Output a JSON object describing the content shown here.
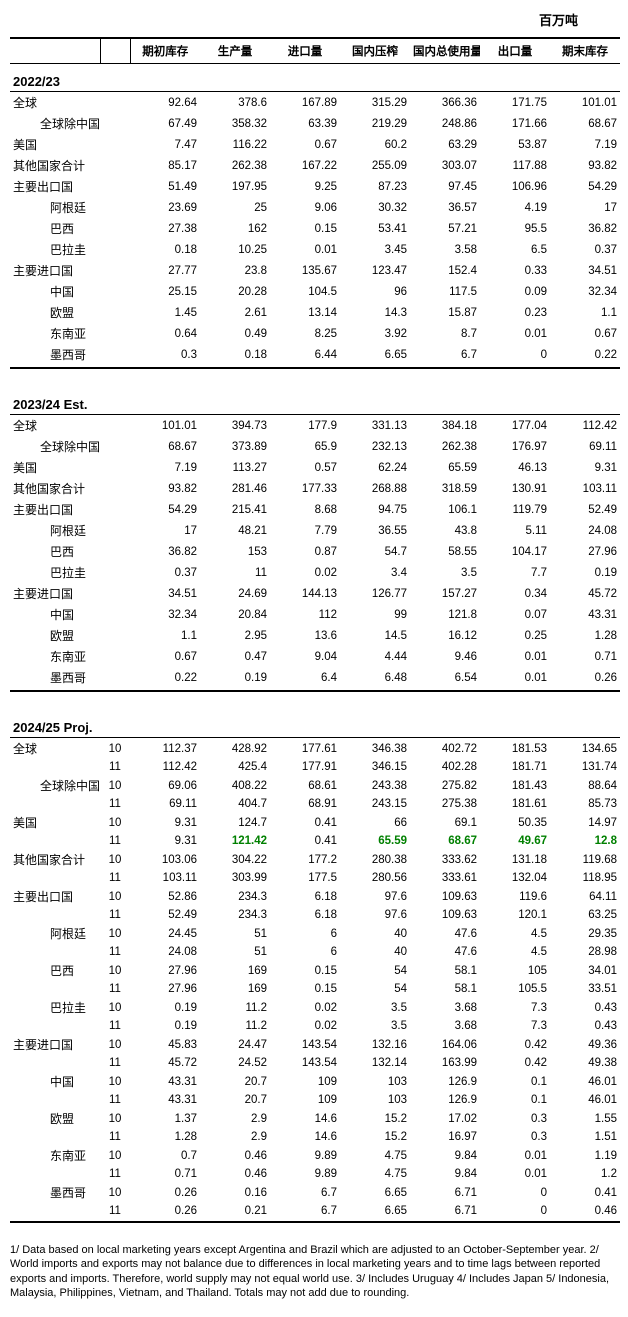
{
  "unit_label": "百万吨",
  "columns": [
    "期初库存",
    "生产量",
    "进口量",
    "国内压榨",
    "国内总使用量",
    "出口量",
    "期末库存"
  ],
  "section_titles": [
    "2022/23",
    "2023/24 Est.",
    "2024/25 Proj."
  ],
  "row_labels": {
    "world": "全球",
    "world_ex_china": "全球除中国外",
    "usa": "美国",
    "other_total": "其他国家合计",
    "major_exporters": "主要出口国",
    "argentina": "阿根廷",
    "brazil": "巴西",
    "paraguay": "巴拉圭",
    "major_importers": "主要进口国",
    "china": "中国",
    "eu": "欧盟",
    "seasia": "东南亚",
    "mexico": "墨西哥"
  },
  "s2022": [
    {
      "k": "world",
      "indent": 0,
      "v": [
        "92.64",
        "378.6",
        "167.89",
        "315.29",
        "366.36",
        "171.75",
        "101.01"
      ]
    },
    {
      "k": "world_ex_china",
      "indent": 1,
      "v": [
        "67.49",
        "358.32",
        "63.39",
        "219.29",
        "248.86",
        "171.66",
        "68.67"
      ]
    },
    {
      "k": "usa",
      "indent": 0,
      "v": [
        "7.47",
        "116.22",
        "0.67",
        "60.2",
        "63.29",
        "53.87",
        "7.19"
      ]
    },
    {
      "k": "other_total",
      "indent": 0,
      "v": [
        "85.17",
        "262.38",
        "167.22",
        "255.09",
        "303.07",
        "117.88",
        "93.82"
      ]
    },
    {
      "k": "major_exporters",
      "indent": 0,
      "v": [
        "51.49",
        "197.95",
        "9.25",
        "87.23",
        "97.45",
        "106.96",
        "54.29"
      ]
    },
    {
      "k": "argentina",
      "indent": 2,
      "v": [
        "23.69",
        "25",
        "9.06",
        "30.32",
        "36.57",
        "4.19",
        "17"
      ]
    },
    {
      "k": "brazil",
      "indent": 2,
      "v": [
        "27.38",
        "162",
        "0.15",
        "53.41",
        "57.21",
        "95.5",
        "36.82"
      ]
    },
    {
      "k": "paraguay",
      "indent": 2,
      "v": [
        "0.18",
        "10.25",
        "0.01",
        "3.45",
        "3.58",
        "6.5",
        "0.37"
      ]
    },
    {
      "k": "major_importers",
      "indent": 0,
      "v": [
        "27.77",
        "23.8",
        "135.67",
        "123.47",
        "152.4",
        "0.33",
        "34.51"
      ]
    },
    {
      "k": "china",
      "indent": 2,
      "v": [
        "25.15",
        "20.28",
        "104.5",
        "96",
        "117.5",
        "0.09",
        "32.34"
      ]
    },
    {
      "k": "eu",
      "indent": 2,
      "v": [
        "1.45",
        "2.61",
        "13.14",
        "14.3",
        "15.87",
        "0.23",
        "1.1"
      ]
    },
    {
      "k": "seasia",
      "indent": 2,
      "v": [
        "0.64",
        "0.49",
        "8.25",
        "3.92",
        "8.7",
        "0.01",
        "0.67"
      ]
    },
    {
      "k": "mexico",
      "indent": 2,
      "v": [
        "0.3",
        "0.18",
        "6.44",
        "6.65",
        "6.7",
        "0",
        "0.22"
      ]
    }
  ],
  "s2023": [
    {
      "k": "world",
      "indent": 0,
      "v": [
        "101.01",
        "394.73",
        "177.9",
        "331.13",
        "384.18",
        "177.04",
        "112.42"
      ]
    },
    {
      "k": "world_ex_china",
      "indent": 1,
      "v": [
        "68.67",
        "373.89",
        "65.9",
        "232.13",
        "262.38",
        "176.97",
        "69.11"
      ]
    },
    {
      "k": "usa",
      "indent": 0,
      "v": [
        "7.19",
        "113.27",
        "0.57",
        "62.24",
        "65.59",
        "46.13",
        "9.31"
      ]
    },
    {
      "k": "other_total",
      "indent": 0,
      "v": [
        "93.82",
        "281.46",
        "177.33",
        "268.88",
        "318.59",
        "130.91",
        "103.11"
      ]
    },
    {
      "k": "major_exporters",
      "indent": 0,
      "v": [
        "54.29",
        "215.41",
        "8.68",
        "94.75",
        "106.1",
        "119.79",
        "52.49"
      ]
    },
    {
      "k": "argentina",
      "indent": 2,
      "v": [
        "17",
        "48.21",
        "7.79",
        "36.55",
        "43.8",
        "5.11",
        "24.08"
      ]
    },
    {
      "k": "brazil",
      "indent": 2,
      "v": [
        "36.82",
        "153",
        "0.87",
        "54.7",
        "58.55",
        "104.17",
        "27.96"
      ]
    },
    {
      "k": "paraguay",
      "indent": 2,
      "v": [
        "0.37",
        "11",
        "0.02",
        "3.4",
        "3.5",
        "7.7",
        "0.19"
      ]
    },
    {
      "k": "major_importers",
      "indent": 0,
      "v": [
        "34.51",
        "24.69",
        "144.13",
        "126.77",
        "157.27",
        "0.34",
        "45.72"
      ]
    },
    {
      "k": "china",
      "indent": 2,
      "v": [
        "32.34",
        "20.84",
        "112",
        "99",
        "121.8",
        "0.07",
        "43.31"
      ]
    },
    {
      "k": "eu",
      "indent": 2,
      "v": [
        "1.1",
        "2.95",
        "13.6",
        "14.5",
        "16.12",
        "0.25",
        "1.28"
      ]
    },
    {
      "k": "seasia",
      "indent": 2,
      "v": [
        "0.67",
        "0.47",
        "9.04",
        "4.44",
        "9.46",
        "0.01",
        "0.71"
      ]
    },
    {
      "k": "mexico",
      "indent": 2,
      "v": [
        "0.22",
        "0.19",
        "6.4",
        "6.48",
        "6.54",
        "0.01",
        "0.26"
      ]
    }
  ],
  "s2024": [
    {
      "k": "world",
      "indent": 0,
      "rows": [
        {
          "m": "10",
          "v": [
            "112.37",
            "428.92",
            "177.61",
            "346.38",
            "402.72",
            "181.53",
            "134.65"
          ]
        },
        {
          "m": "11",
          "v": [
            "112.42",
            "425.4",
            "177.91",
            "346.15",
            "402.28",
            "181.71",
            "131.74"
          ]
        }
      ]
    },
    {
      "k": "world_ex_china",
      "indent": 1,
      "rows": [
        {
          "m": "10",
          "v": [
            "69.06",
            "408.22",
            "68.61",
            "243.38",
            "275.82",
            "181.43",
            "88.64"
          ]
        },
        {
          "m": "11",
          "v": [
            "69.11",
            "404.7",
            "68.91",
            "243.15",
            "275.38",
            "181.61",
            "85.73"
          ]
        }
      ]
    },
    {
      "k": "usa",
      "indent": 0,
      "rows": [
        {
          "m": "10",
          "v": [
            "9.31",
            "124.7",
            "0.41",
            "66",
            "69.1",
            "50.35",
            "14.97"
          ]
        },
        {
          "m": "11",
          "v": [
            "9.31",
            "121.42",
            "0.41",
            "65.59",
            "68.67",
            "49.67",
            "12.8"
          ],
          "green": [
            1,
            3,
            4,
            5,
            6
          ]
        }
      ]
    },
    {
      "k": "other_total",
      "indent": 0,
      "rows": [
        {
          "m": "10",
          "v": [
            "103.06",
            "304.22",
            "177.2",
            "280.38",
            "333.62",
            "131.18",
            "119.68"
          ]
        },
        {
          "m": "11",
          "v": [
            "103.11",
            "303.99",
            "177.5",
            "280.56",
            "333.61",
            "132.04",
            "118.95"
          ]
        }
      ]
    },
    {
      "k": "major_exporters",
      "indent": 0,
      "rows": [
        {
          "m": "10",
          "v": [
            "52.86",
            "234.3",
            "6.18",
            "97.6",
            "109.63",
            "119.6",
            "64.11"
          ]
        },
        {
          "m": "11",
          "v": [
            "52.49",
            "234.3",
            "6.18",
            "97.6",
            "109.63",
            "120.1",
            "63.25"
          ]
        }
      ]
    },
    {
      "k": "argentina",
      "indent": 2,
      "rows": [
        {
          "m": "10",
          "v": [
            "24.45",
            "51",
            "6",
            "40",
            "47.6",
            "4.5",
            "29.35"
          ]
        },
        {
          "m": "11",
          "v": [
            "24.08",
            "51",
            "6",
            "40",
            "47.6",
            "4.5",
            "28.98"
          ]
        }
      ]
    },
    {
      "k": "brazil",
      "indent": 2,
      "rows": [
        {
          "m": "10",
          "v": [
            "27.96",
            "169",
            "0.15",
            "54",
            "58.1",
            "105",
            "34.01"
          ]
        },
        {
          "m": "11",
          "v": [
            "27.96",
            "169",
            "0.15",
            "54",
            "58.1",
            "105.5",
            "33.51"
          ]
        }
      ]
    },
    {
      "k": "paraguay",
      "indent": 2,
      "rows": [
        {
          "m": "10",
          "v": [
            "0.19",
            "11.2",
            "0.02",
            "3.5",
            "3.68",
            "7.3",
            "0.43"
          ]
        },
        {
          "m": "11",
          "v": [
            "0.19",
            "11.2",
            "0.02",
            "3.5",
            "3.68",
            "7.3",
            "0.43"
          ]
        }
      ]
    },
    {
      "k": "major_importers",
      "indent": 0,
      "rows": [
        {
          "m": "10",
          "v": [
            "45.83",
            "24.47",
            "143.54",
            "132.16",
            "164.06",
            "0.42",
            "49.36"
          ]
        },
        {
          "m": "11",
          "v": [
            "45.72",
            "24.52",
            "143.54",
            "132.14",
            "163.99",
            "0.42",
            "49.38"
          ]
        }
      ]
    },
    {
      "k": "china",
      "indent": 2,
      "rows": [
        {
          "m": "10",
          "v": [
            "43.31",
            "20.7",
            "109",
            "103",
            "126.9",
            "0.1",
            "46.01"
          ]
        },
        {
          "m": "11",
          "v": [
            "43.31",
            "20.7",
            "109",
            "103",
            "126.9",
            "0.1",
            "46.01"
          ]
        }
      ]
    },
    {
      "k": "eu",
      "indent": 2,
      "rows": [
        {
          "m": "10",
          "v": [
            "1.37",
            "2.9",
            "14.6",
            "15.2",
            "17.02",
            "0.3",
            "1.55"
          ]
        },
        {
          "m": "11",
          "v": [
            "1.28",
            "2.9",
            "14.6",
            "15.2",
            "16.97",
            "0.3",
            "1.51"
          ]
        }
      ]
    },
    {
      "k": "seasia",
      "indent": 2,
      "rows": [
        {
          "m": "10",
          "v": [
            "0.7",
            "0.46",
            "9.89",
            "4.75",
            "9.84",
            "0.01",
            "1.19"
          ]
        },
        {
          "m": "11",
          "v": [
            "0.71",
            "0.46",
            "9.89",
            "4.75",
            "9.84",
            "0.01",
            "1.2"
          ]
        }
      ]
    },
    {
      "k": "mexico",
      "indent": 2,
      "rows": [
        {
          "m": "10",
          "v": [
            "0.26",
            "0.16",
            "6.7",
            "6.65",
            "6.71",
            "0",
            "0.41"
          ]
        },
        {
          "m": "11",
          "v": [
            "0.26",
            "0.21",
            "6.7",
            "6.65",
            "6.71",
            "0",
            "0.46"
          ]
        }
      ]
    }
  ],
  "footnote": "1/ Data based on local marketing years except Argentina and Brazil which are adjusted to an October-September year.  2/ World imports and exports may not balance due to differences in local marketing years and to time lags between reported exports and imports.  Therefore, world supply may not equal world use.  3/ Includes Uruguay  4/ Includes Japan  5/ Indonesia, Malaysia, Philippines, Vietnam, and Thailand.  Totals may not add due to rounding."
}
